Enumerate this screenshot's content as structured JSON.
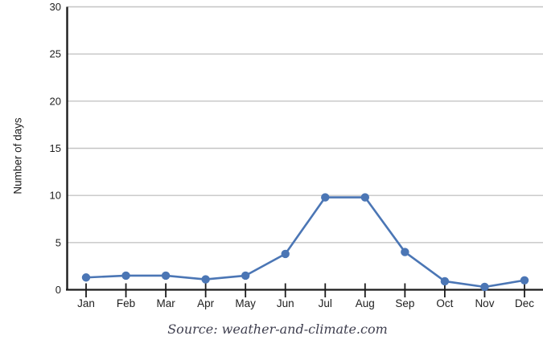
{
  "chart_data": {
    "type": "line",
    "categories": [
      "Jan",
      "Feb",
      "Mar",
      "Apr",
      "May",
      "Jun",
      "Jul",
      "Aug",
      "Sep",
      "Oct",
      "Nov",
      "Dec"
    ],
    "series": [
      {
        "name": "Number of days",
        "values": [
          1.3,
          1.5,
          1.5,
          1.1,
          1.5,
          3.8,
          9.8,
          9.8,
          4.0,
          0.9,
          0.3,
          1.0
        ]
      }
    ],
    "title": "",
    "xlabel": "",
    "ylabel": "Number of days",
    "ylim": [
      0,
      30
    ],
    "ytick_step": 5,
    "yticks": [
      "0",
      "5",
      "10",
      "15",
      "20",
      "25",
      "30"
    ],
    "grid": true,
    "legend": false,
    "source": "Source: weather-and-climate.com",
    "colors": {
      "line": "#4b76b5",
      "marker": "#4b76b5",
      "grid": "#c4c4c4",
      "axis": "#1c1c1c",
      "label": "#1e1e1e",
      "source_text": "#3e3e4e"
    }
  }
}
